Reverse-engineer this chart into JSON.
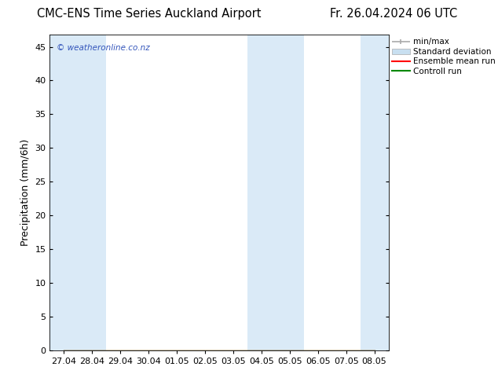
{
  "title_left": "CMC-ENS Time Series Auckland Airport",
  "title_right": "Fr. 26.04.2024 06 UTC",
  "ylabel": "Precipitation (mm/6h)",
  "watermark": "© weatheronline.co.nz",
  "ylim": [
    0,
    46.8
  ],
  "yticks": [
    0,
    5,
    10,
    15,
    20,
    25,
    30,
    35,
    40,
    45
  ],
  "xtick_labels": [
    "27.04",
    "28.04",
    "29.04",
    "30.04",
    "01.05",
    "02.05",
    "03.05",
    "04.05",
    "05.05",
    "06.05",
    "07.05",
    "08.05"
  ],
  "n_points": 12,
  "bg_color": "#ffffff",
  "band_color": "#daeaf7",
  "band_indices": [
    0,
    1,
    7,
    8,
    11
  ],
  "legend_labels": [
    "min/max",
    "Standard deviation",
    "Ensemble mean run",
    "Controll run"
  ],
  "minmax_color": "#aaaaaa",
  "std_color": "#c8dff0",
  "ensemble_color": "#ff0000",
  "control_color": "#008800",
  "title_fontsize": 10.5,
  "tick_fontsize": 8,
  "ylabel_fontsize": 9
}
